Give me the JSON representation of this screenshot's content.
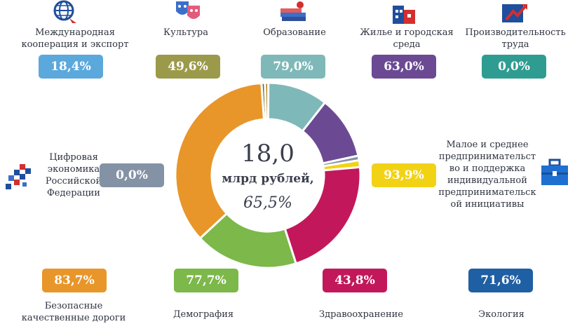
{
  "chart_data": {
    "type": "pie",
    "center": {
      "value": "18,0",
      "unit": "млрд рублей,",
      "percent": "65,5%"
    },
    "categories": [
      {
        "label": "Международная кооперация и экспорт",
        "value": "18,4%",
        "color": "#5ba8dc"
      },
      {
        "label": "Культура",
        "value": "49,6%",
        "color": "#9b9a4a"
      },
      {
        "label": "Образование",
        "value": "79,0%",
        "color": "#7fb8b8"
      },
      {
        "label": "Жилье и городская среда",
        "value": "63,0%",
        "color": "#6b4a93"
      },
      {
        "label": "Производительность труда",
        "value": "0,0%",
        "color": "#2f9c92"
      },
      {
        "label": "Цифровая экономика Российской Федерации",
        "value": "0,0%",
        "color": "#8492a6"
      },
      {
        "label": "Малое и среднее предпринимательство и поддержка индивидуальной предпринимательской инициативы",
        "value": "93,9%",
        "color": "#f2d215"
      },
      {
        "label": "Безопасные качественные дороги",
        "value": "83,7%",
        "color": "#e8962a"
      },
      {
        "label": "Демография",
        "value": "77,7%",
        "color": "#7cb84a"
      },
      {
        "label": "Здравоохранение",
        "value": "43,8%",
        "color": "#c2185b"
      },
      {
        "label": "Экология",
        "value": "71,6%",
        "color": "#1f5fa3"
      }
    ],
    "slices": [
      {
        "value": 0.6,
        "color": "#6d6a38"
      },
      {
        "value": 0.6,
        "color": "#b08a2a"
      },
      {
        "value": 10.5,
        "color": "#7fb8b8"
      },
      {
        "value": 11.0,
        "color": "#6b4a93"
      },
      {
        "value": 0.8,
        "color": "#8492a6"
      },
      {
        "value": 1.2,
        "color": "#f2d215"
      },
      {
        "value": 21.5,
        "color": "#c2185b"
      },
      {
        "value": 18.0,
        "color": "#7cb84a"
      },
      {
        "value": 35.8,
        "color": "#e8962a"
      }
    ]
  },
  "labels_text": {
    "export": [
      "Международная",
      "кооперация и экспорт"
    ],
    "culture": [
      "Культура"
    ],
    "education": [
      "Образование"
    ],
    "housing": [
      "Жилье и городская",
      "среда"
    ],
    "productivity": [
      "Производительность",
      "труда"
    ],
    "digital": [
      "Цифровая",
      "экономика",
      "Российской",
      "Федерации"
    ],
    "sme": [
      "Малое и среднее",
      "предпринимательст",
      "во и поддержка",
      "индивидуальной",
      "предпринимательск",
      "ой инициативы"
    ],
    "roads": [
      "Безопасные",
      "качественные дороги"
    ],
    "demography": [
      "Демография"
    ],
    "health": [
      "Здравоохранение"
    ],
    "ecology": [
      "Экология"
    ]
  }
}
